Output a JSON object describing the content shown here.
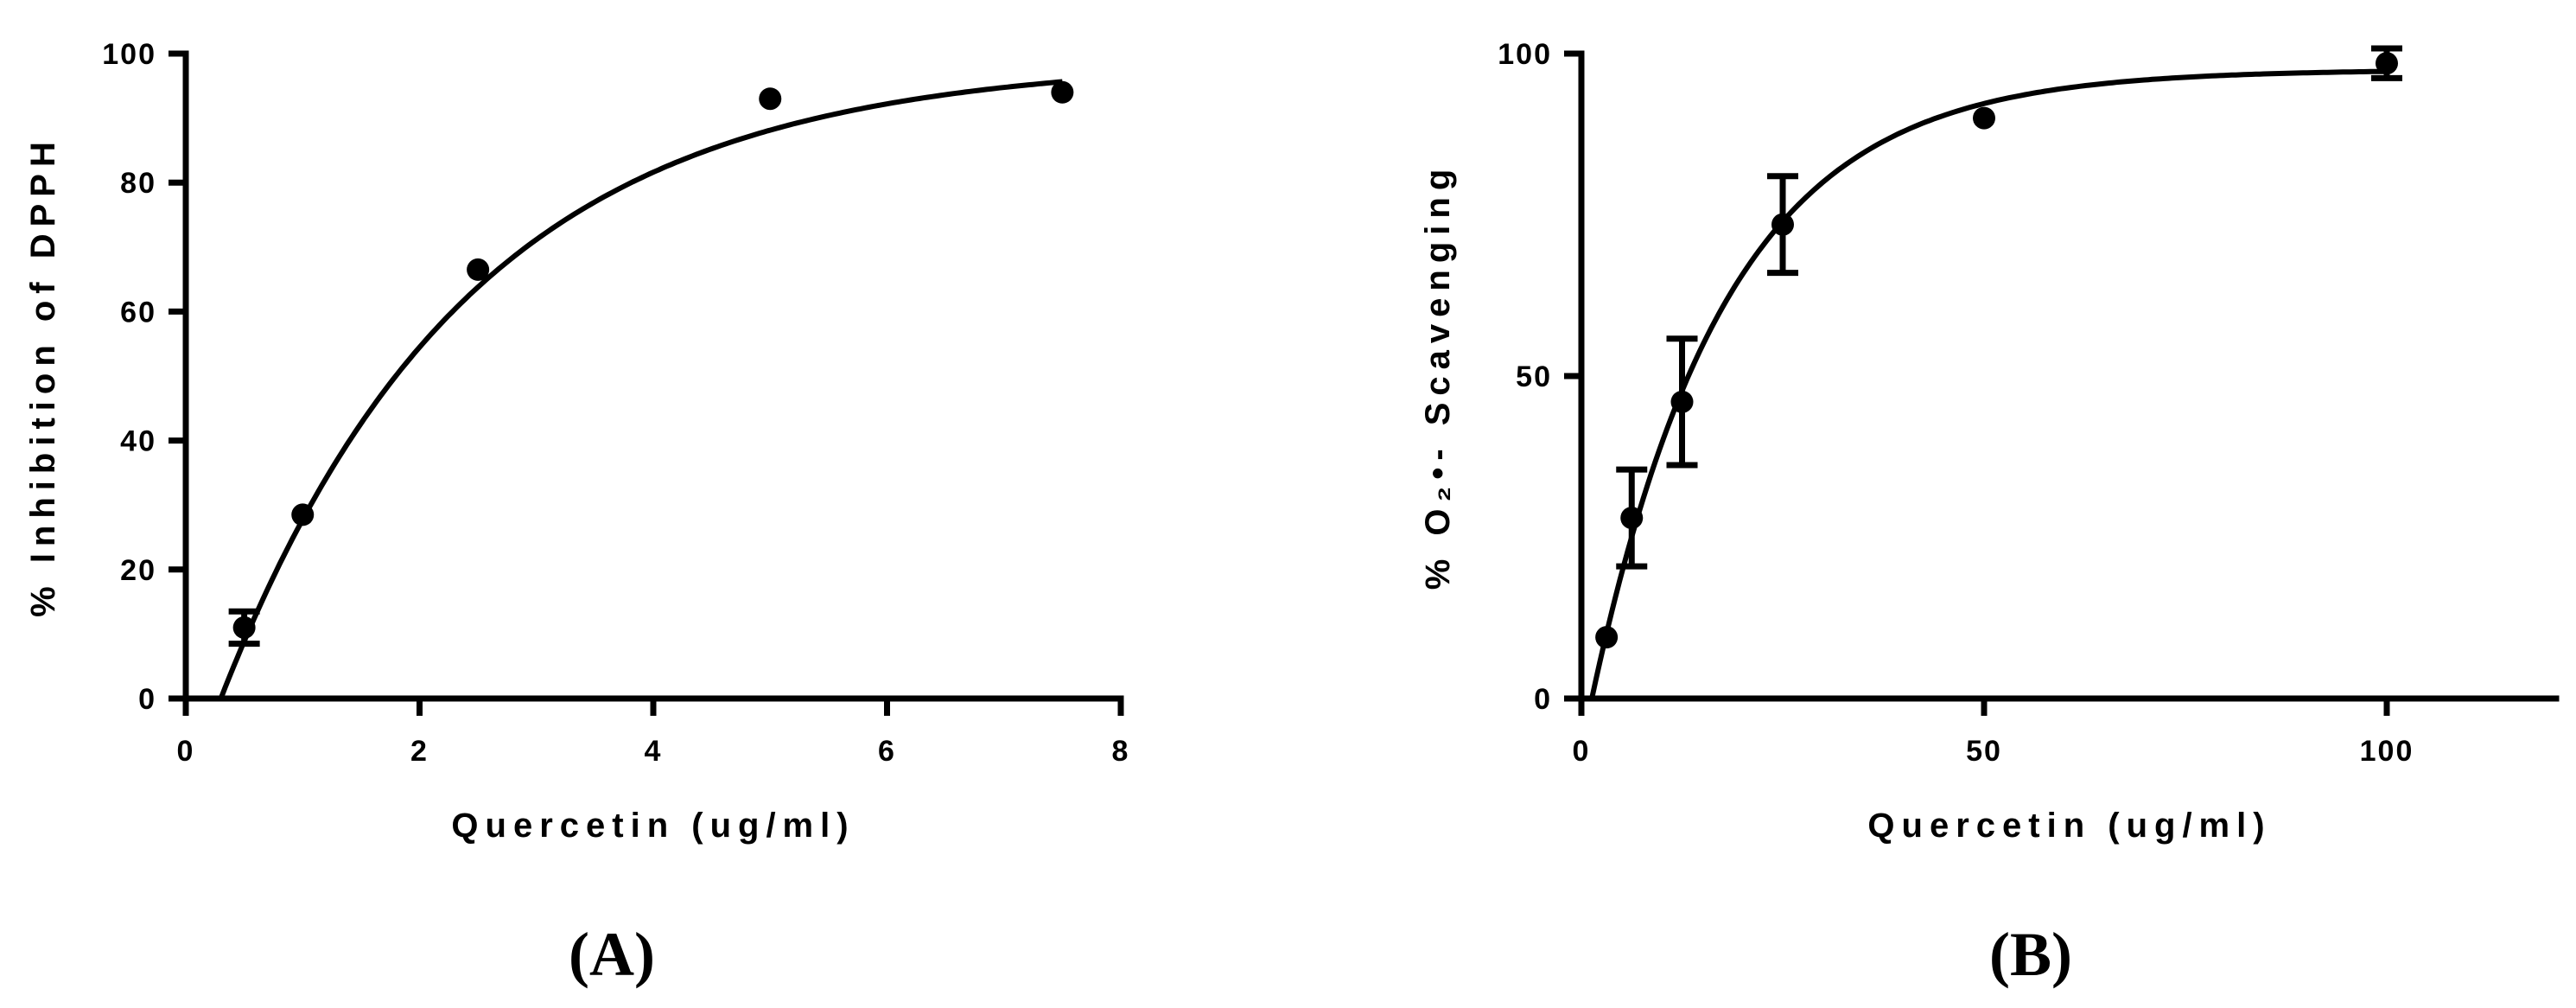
{
  "chart_data": [
    {
      "id": "A",
      "type": "scatter",
      "panel_label": "(A)",
      "xlabel": "Quercetin (ug/ml)",
      "ylabel": "% Inhibition of DPPH",
      "xlim": [
        0,
        8
      ],
      "ylim": [
        0,
        100
      ],
      "xticks": [
        0,
        2,
        4,
        6,
        8
      ],
      "yticks": [
        0,
        20,
        40,
        60,
        80,
        100
      ],
      "xtick_labels": [
        "0",
        "2",
        "4",
        "6",
        "8"
      ],
      "ytick_labels": [
        "0",
        "20",
        "40",
        "60",
        "80",
        "100"
      ],
      "grid": false,
      "points": [
        {
          "x": 0.5,
          "y": 11,
          "err": 2.5
        },
        {
          "x": 1.0,
          "y": 28.5,
          "err": 0
        },
        {
          "x": 2.5,
          "y": 66.5,
          "err": 0
        },
        {
          "x": 5.0,
          "y": 93,
          "err": 0
        },
        {
          "x": 7.5,
          "y": 94,
          "err": 0
        }
      ],
      "fit": {
        "model": "one-phase association",
        "ymax": 99,
        "k": 0.47,
        "x0": 0.3,
        "x_range": [
          0.3,
          7.5
        ]
      }
    },
    {
      "id": "B",
      "type": "scatter",
      "panel_label": "(B)",
      "xlabel": "Quercetin (ug/ml)",
      "ylabel": "% O₂•- Scavenging",
      "xlim": [
        0,
        120
      ],
      "ylim": [
        0,
        100
      ],
      "xticks": [
        0,
        50,
        100
      ],
      "yticks": [
        0,
        50,
        100
      ],
      "xtick_labels": [
        "0",
        "50",
        "100"
      ],
      "ytick_labels": [
        "0",
        "50",
        "100"
      ],
      "grid": false,
      "points": [
        {
          "x": 3.125,
          "y": 9.5,
          "err": 0
        },
        {
          "x": 6.25,
          "y": 28,
          "err": 7.5
        },
        {
          "x": 12.5,
          "y": 46,
          "err": 9.8
        },
        {
          "x": 25,
          "y": 73.5,
          "err": 7.5
        },
        {
          "x": 50,
          "y": 90,
          "err": 0
        },
        {
          "x": 100,
          "y": 98.5,
          "err": 2.3
        }
      ],
      "fit": {
        "model": "one-phase association",
        "ymax": 97.5,
        "k": 0.06,
        "x0": 1.3,
        "x_range": [
          1.3,
          100
        ]
      }
    }
  ]
}
